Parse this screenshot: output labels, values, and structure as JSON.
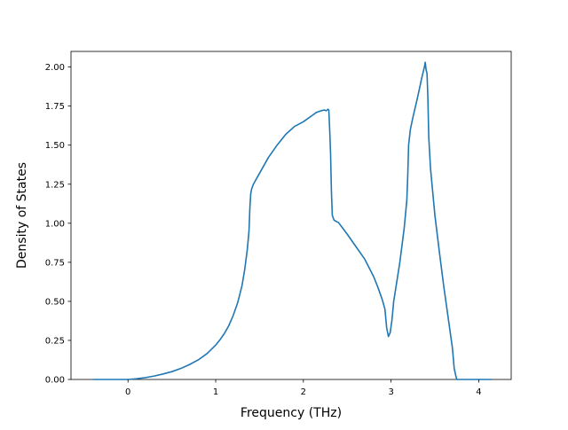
{
  "chart_data": {
    "type": "line",
    "title": "",
    "xlabel": "Frequency (THz)",
    "ylabel": "Density of States",
    "xlim": [
      -0.65,
      4.37
    ],
    "ylim": [
      0,
      2.1
    ],
    "xticks": [
      0,
      1,
      2,
      3,
      4
    ],
    "xtick_labels": [
      "0",
      "1",
      "2",
      "3",
      "4"
    ],
    "yticks": [
      0,
      0.25,
      0.5,
      0.75,
      1.0,
      1.25,
      1.5,
      1.75,
      2.0
    ],
    "ytick_labels": [
      "0.00",
      "0.25",
      "0.50",
      "0.75",
      "1.00",
      "1.25",
      "1.50",
      "1.75",
      "2.00"
    ],
    "grid": false,
    "legend": "none",
    "series": [
      {
        "color": "#1f77b4",
        "x": [
          -0.4,
          -0.2,
          0.0,
          0.1,
          0.2,
          0.3,
          0.4,
          0.5,
          0.6,
          0.7,
          0.8,
          0.9,
          1.0,
          1.05,
          1.1,
          1.15,
          1.2,
          1.25,
          1.3,
          1.33,
          1.36,
          1.38,
          1.39,
          1.4,
          1.41,
          1.43,
          1.45,
          1.5,
          1.6,
          1.7,
          1.8,
          1.9,
          2.0,
          2.1,
          2.15,
          2.2,
          2.24,
          2.26,
          2.28,
          2.29,
          2.3,
          2.31,
          2.32,
          2.33,
          2.35,
          2.38,
          2.4,
          2.5,
          2.6,
          2.7,
          2.8,
          2.85,
          2.9,
          2.93,
          2.95,
          2.97,
          2.99,
          3.01,
          3.03,
          3.1,
          3.15,
          3.18,
          3.19,
          3.2,
          3.22,
          3.25,
          3.3,
          3.35,
          3.38,
          3.39,
          3.4,
          3.41,
          3.42,
          3.43,
          3.45,
          3.5,
          3.55,
          3.6,
          3.65,
          3.7,
          3.72,
          3.74,
          3.75,
          3.76,
          3.8,
          3.9,
          4.0,
          4.1,
          4.15
        ],
        "y": [
          0.0,
          0.0,
          0.0,
          0.005,
          0.012,
          0.022,
          0.035,
          0.05,
          0.07,
          0.095,
          0.125,
          0.165,
          0.22,
          0.255,
          0.295,
          0.345,
          0.41,
          0.49,
          0.6,
          0.7,
          0.83,
          0.95,
          1.1,
          1.19,
          1.22,
          1.25,
          1.27,
          1.32,
          1.42,
          1.5,
          1.57,
          1.62,
          1.65,
          1.69,
          1.71,
          1.72,
          1.725,
          1.72,
          1.73,
          1.725,
          1.6,
          1.45,
          1.2,
          1.05,
          1.02,
          1.01,
          1.005,
          0.93,
          0.85,
          0.77,
          0.66,
          0.59,
          0.51,
          0.45,
          0.33,
          0.275,
          0.3,
          0.38,
          0.5,
          0.75,
          0.97,
          1.15,
          1.3,
          1.5,
          1.6,
          1.68,
          1.8,
          1.93,
          2.0,
          2.03,
          1.98,
          1.96,
          1.8,
          1.55,
          1.35,
          1.05,
          0.82,
          0.6,
          0.4,
          0.2,
          0.07,
          0.02,
          0.0,
          0.0,
          0.0,
          0.0,
          0.0,
          0.0,
          0.0
        ]
      }
    ]
  }
}
